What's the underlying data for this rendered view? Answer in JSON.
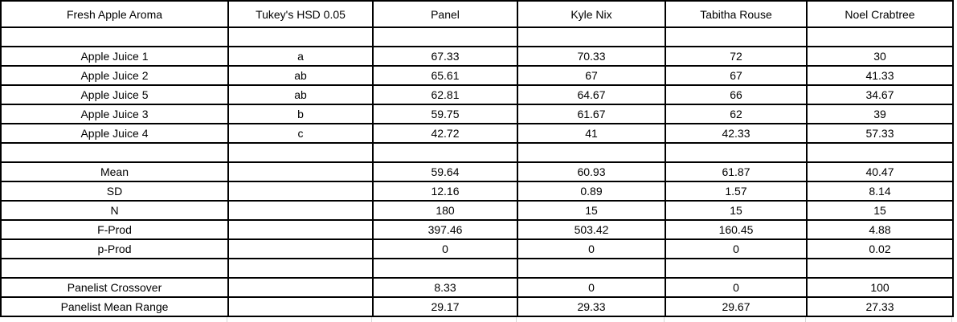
{
  "sheet": {
    "title": "Fresh Apple Aroma",
    "columns": [
      "Fresh Apple Aroma",
      "Tukey's HSD 0.05",
      "Panel",
      "Kyle Nix",
      "Tabitha Rouse",
      "Noel Crabtree"
    ],
    "rows": [
      {
        "kind": "blank",
        "cells": [
          "",
          "",
          "",
          "",
          "",
          ""
        ]
      },
      {
        "kind": "sample",
        "cells": [
          "Apple Juice 1",
          "a",
          "67.33",
          "70.33",
          "72",
          "30"
        ]
      },
      {
        "kind": "sample",
        "cells": [
          "Apple Juice 2",
          "ab",
          "65.61",
          "67",
          "67",
          "41.33"
        ]
      },
      {
        "kind": "sample",
        "cells": [
          "Apple Juice 5",
          "ab",
          "62.81",
          "64.67",
          "66",
          "34.67"
        ]
      },
      {
        "kind": "sample",
        "cells": [
          "Apple Juice 3",
          "b",
          "59.75",
          "61.67",
          "62",
          "39"
        ]
      },
      {
        "kind": "sample",
        "cells": [
          "Apple Juice 4",
          "c",
          "42.72",
          "41",
          "42.33",
          "57.33"
        ]
      },
      {
        "kind": "blank",
        "cells": [
          "",
          "",
          "",
          "",
          "",
          ""
        ]
      },
      {
        "kind": "stat",
        "cells": [
          "Mean",
          "",
          "59.64",
          "60.93",
          "61.87",
          "40.47"
        ]
      },
      {
        "kind": "stat",
        "cells": [
          "SD",
          "",
          "12.16",
          "0.89",
          "1.57",
          "8.14"
        ]
      },
      {
        "kind": "stat",
        "cells": [
          "N",
          "",
          "180",
          "15",
          "15",
          "15"
        ]
      },
      {
        "kind": "stat",
        "cells": [
          "F-Prod",
          "",
          "397.46",
          "503.42",
          "160.45",
          "4.88"
        ]
      },
      {
        "kind": "stat",
        "cells": [
          "p-Prod",
          "",
          "0",
          "0",
          "0",
          "0.02"
        ]
      },
      {
        "kind": "blank",
        "cells": [
          "",
          "",
          "",
          "",
          "",
          ""
        ]
      },
      {
        "kind": "stat",
        "cells": [
          "Panelist Crossover",
          "",
          "8.33",
          "0",
          "0",
          "100"
        ]
      },
      {
        "kind": "stat",
        "cells": [
          "Panelist Mean Range",
          "",
          "29.17",
          "29.33",
          "29.67",
          "27.33"
        ]
      }
    ],
    "colors": {
      "text": "#000000",
      "table_border": "#000000",
      "sheet_gridline": "#d6d6d6",
      "background": "#ffffff"
    }
  }
}
